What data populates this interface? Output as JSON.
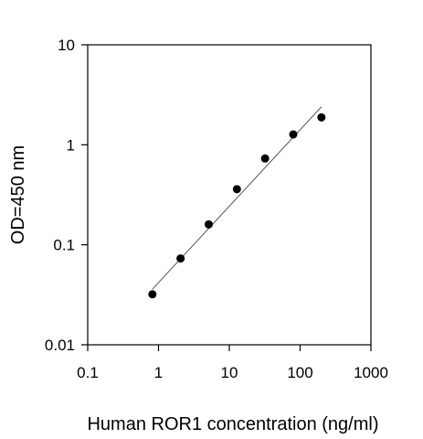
{
  "chart_data": {
    "type": "scatter",
    "title": "",
    "xlabel": "Human ROR1 concentration (ng/ml)",
    "ylabel": "OD=450 nm",
    "x_scale": "log",
    "y_scale": "log",
    "xlim": [
      0.1,
      1000
    ],
    "ylim": [
      0.01,
      10
    ],
    "x_ticks": [
      0.1,
      1,
      10,
      100,
      1000
    ],
    "x_tick_labels": [
      "0.1",
      "1",
      "10",
      "100",
      "1000"
    ],
    "y_ticks": [
      0.01,
      0.1,
      1,
      10
    ],
    "y_tick_labels": [
      "0.01",
      "0.1",
      "1",
      "10"
    ],
    "grid": false,
    "series": [
      {
        "x": [
          0.82,
          2.05,
          5.12,
          12.8,
          32,
          80,
          200
        ],
        "y": [
          0.032,
          0.073,
          0.16,
          0.36,
          0.73,
          1.27,
          1.88
        ],
        "color": "#000000"
      }
    ],
    "fit_line": {
      "x": [
        0.82,
        200
      ],
      "y": [
        0.036,
        2.4
      ],
      "color": "#555555"
    }
  }
}
